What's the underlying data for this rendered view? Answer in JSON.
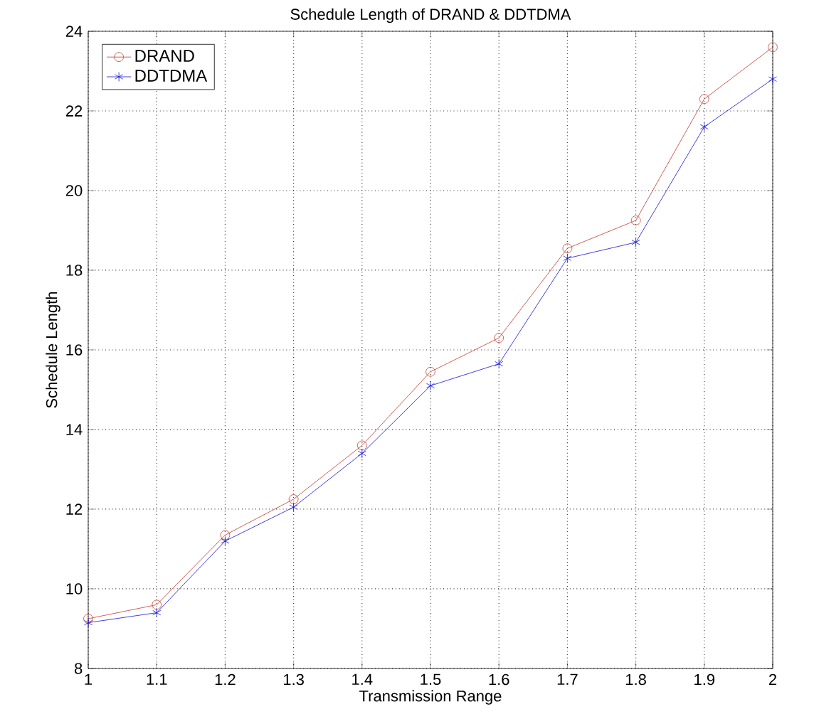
{
  "chart_data": {
    "type": "line",
    "title": "Schedule Length of DRAND & DDTDMA",
    "xlabel": "Transmission Range",
    "ylabel": "Schedule Length",
    "x": [
      1,
      1.1,
      1.2,
      1.3,
      1.4,
      1.5,
      1.6,
      1.7,
      1.8,
      1.9,
      2
    ],
    "series": [
      {
        "name": "DRAND",
        "color": "#c0392b",
        "marker": "circle",
        "values": [
          9.25,
          9.6,
          11.35,
          12.25,
          13.6,
          15.45,
          16.3,
          18.55,
          19.25,
          22.3,
          23.6
        ]
      },
      {
        "name": "DDTDMA",
        "color": "#1010d0",
        "marker": "cross",
        "values": [
          9.15,
          9.4,
          11.2,
          12.05,
          13.4,
          15.1,
          15.65,
          18.3,
          18.7,
          21.6,
          22.8
        ]
      }
    ],
    "xlim": [
      1,
      2
    ],
    "ylim": [
      8,
      24
    ],
    "xticks": [
      1,
      1.1,
      1.2,
      1.3,
      1.4,
      1.5,
      1.6,
      1.7,
      1.8,
      1.9,
      2
    ],
    "yticks": [
      8,
      10,
      12,
      14,
      16,
      18,
      20,
      22,
      24
    ],
    "grid": true,
    "legend": "top left",
    "line_style": "solid"
  }
}
